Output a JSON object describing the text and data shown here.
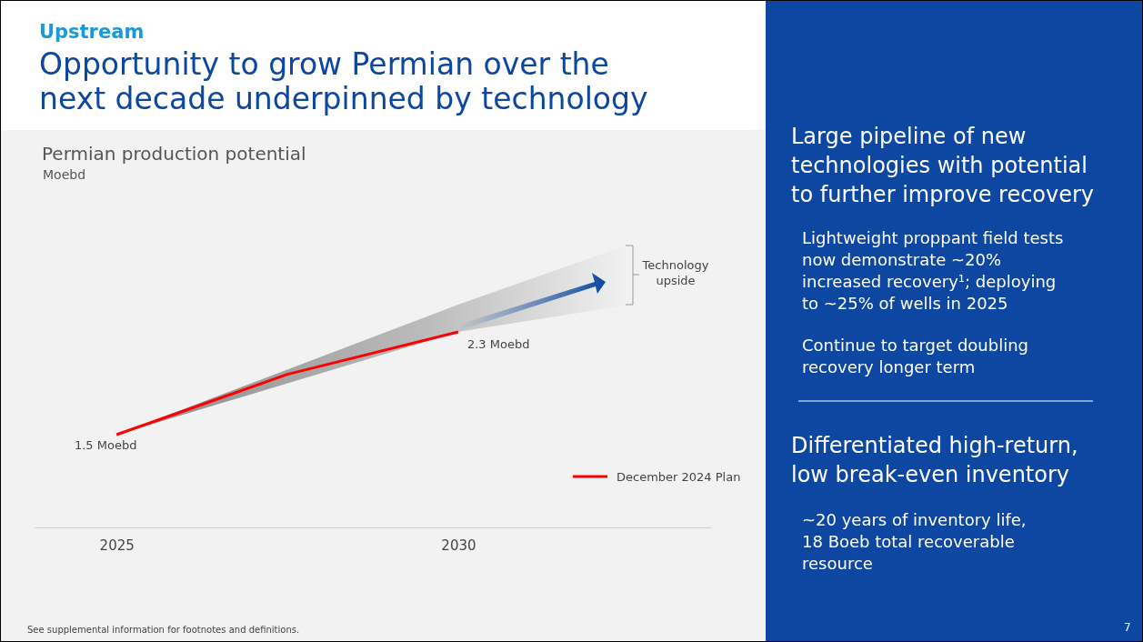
{
  "chart_data": {
    "type": "line",
    "title": "Opportunity to grow Permian over the next decade underpinned by technology",
    "subtitle": "Permian production potential",
    "x": [
      2025,
      2027.5,
      2030
    ],
    "xlim": [
      2023.8,
      2033.7
    ],
    "xticks": [
      2025,
      2030
    ],
    "tick_labels": "x",
    "legend": "bottom right",
    "marker": "none",
    "line_style": "solid",
    "series": [
      {
        "name": "December 2024 Plan",
        "color": "#ff0000",
        "values": [
          1.5,
          1.97,
          2.3
        ],
        "value_labels": [
          "1.5 Moebd",
          null,
          "2.3 Moebd"
        ]
      }
    ],
    "annotations": [
      "Upstream",
      "Technology upside",
      "See supplemental information for footnotes and definitions.",
      "Large pipeline of new technologies with potential to further improve recovery",
      "Lightweight proppant field tests now demonstrate ~20% increased recovery¹; deploying to ~25% of wells in 2025",
      "Continue to target doubling recovery longer term",
      "Differentiated high-return, low break-even inventory",
      "~20 years of inventory life, 18 Boeb total recoverable resource",
      "7",
      "Moebd"
    ]
  }
}
